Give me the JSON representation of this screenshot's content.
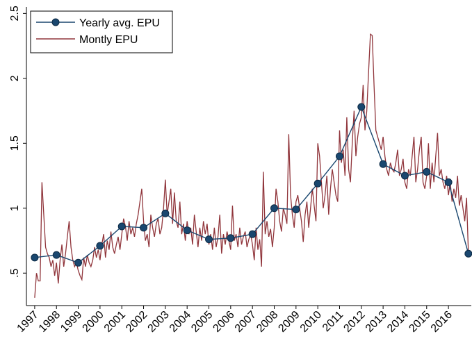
{
  "chart_data": {
    "type": "line",
    "xlim": [
      1996.62,
      2017.05
    ],
    "xticks": [
      1997,
      1998,
      1999,
      2000,
      2001,
      2002,
      2003,
      2004,
      2005,
      2006,
      2007,
      2008,
      2009,
      2010,
      2011,
      2012,
      2013,
      2014,
      2015,
      2016
    ],
    "ylim": [
      0.25,
      2.55
    ],
    "yticks": [
      {
        "value": 0.5,
        "label": ".5"
      },
      1,
      1.5,
      2,
      2.5
    ],
    "legend": "top-left",
    "series": [
      {
        "name": "Yearly avg. EPU",
        "color": "#1a476f",
        "marker": true,
        "x": [
          1997,
          1998,
          1999,
          2000,
          2001,
          2002,
          2003,
          2004,
          2005,
          2006,
          2007,
          2008,
          2009,
          2010,
          2011,
          2012,
          2013,
          2014,
          2015,
          2016,
          2016.917
        ],
        "values": [
          0.62,
          0.64,
          0.58,
          0.71,
          0.86,
          0.85,
          0.96,
          0.83,
          0.76,
          0.77,
          0.8,
          1.0,
          0.99,
          1.19,
          1.4,
          1.78,
          1.34,
          1.25,
          1.28,
          1.2,
          0.65
        ]
      },
      {
        "name": "Montly EPU",
        "color": "#90353b",
        "marker": false,
        "x": [
          1997,
          1997.083,
          1997.167,
          1997.25,
          1997.333,
          1997.417,
          1997.5,
          1997.583,
          1997.667,
          1997.75,
          1997.833,
          1997.917,
          1998,
          1998.083,
          1998.167,
          1998.25,
          1998.333,
          1998.417,
          1998.5,
          1998.583,
          1998.667,
          1998.75,
          1998.833,
          1998.917,
          1999,
          1999.083,
          1999.167,
          1999.25,
          1999.333,
          1999.417,
          1999.5,
          1999.583,
          1999.667,
          1999.75,
          1999.833,
          1999.917,
          2000,
          2000.083,
          2000.167,
          2000.25,
          2000.333,
          2000.417,
          2000.5,
          2000.583,
          2000.667,
          2000.75,
          2000.833,
          2000.917,
          2001,
          2001.083,
          2001.167,
          2001.25,
          2001.333,
          2001.417,
          2001.5,
          2001.583,
          2001.667,
          2001.75,
          2001.833,
          2001.917,
          2002,
          2002.083,
          2002.167,
          2002.25,
          2002.333,
          2002.417,
          2002.5,
          2002.583,
          2002.667,
          2002.75,
          2002.833,
          2002.917,
          2003,
          2003.083,
          2003.167,
          2003.25,
          2003.333,
          2003.417,
          2003.5,
          2003.583,
          2003.667,
          2003.75,
          2003.833,
          2003.917,
          2004,
          2004.083,
          2004.167,
          2004.25,
          2004.333,
          2004.417,
          2004.5,
          2004.583,
          2004.667,
          2004.75,
          2004.833,
          2004.917,
          2005,
          2005.083,
          2005.167,
          2005.25,
          2005.333,
          2005.417,
          2005.5,
          2005.583,
          2005.667,
          2005.75,
          2005.833,
          2005.917,
          2006,
          2006.083,
          2006.167,
          2006.25,
          2006.333,
          2006.417,
          2006.5,
          2006.583,
          2006.667,
          2006.75,
          2006.833,
          2006.917,
          2007,
          2007.083,
          2007.167,
          2007.25,
          2007.333,
          2007.417,
          2007.5,
          2007.583,
          2007.667,
          2007.75,
          2007.833,
          2007.917,
          2008,
          2008.083,
          2008.167,
          2008.25,
          2008.333,
          2008.417,
          2008.5,
          2008.583,
          2008.667,
          2008.75,
          2008.833,
          2008.917,
          2009,
          2009.083,
          2009.167,
          2009.25,
          2009.333,
          2009.417,
          2009.5,
          2009.583,
          2009.667,
          2009.75,
          2009.833,
          2009.917,
          2010,
          2010.083,
          2010.167,
          2010.25,
          2010.333,
          2010.417,
          2010.5,
          2010.583,
          2010.667,
          2010.75,
          2010.833,
          2010.917,
          2011,
          2011.083,
          2011.167,
          2011.25,
          2011.333,
          2011.417,
          2011.5,
          2011.583,
          2011.667,
          2011.75,
          2011.833,
          2011.917,
          2012,
          2012.083,
          2012.167,
          2012.25,
          2012.333,
          2012.417,
          2012.5,
          2012.583,
          2012.667,
          2012.75,
          2012.833,
          2012.917,
          2013,
          2013.083,
          2013.167,
          2013.25,
          2013.333,
          2013.417,
          2013.5,
          2013.583,
          2013.667,
          2013.75,
          2013.833,
          2013.917,
          2014,
          2014.083,
          2014.167,
          2014.25,
          2014.333,
          2014.417,
          2014.5,
          2014.583,
          2014.667,
          2014.75,
          2014.833,
          2014.917,
          2015,
          2015.083,
          2015.167,
          2015.25,
          2015.333,
          2015.417,
          2015.5,
          2015.583,
          2015.667,
          2015.75,
          2015.833,
          2015.917,
          2016,
          2016.083,
          2016.167,
          2016.25,
          2016.333,
          2016.417,
          2016.5,
          2016.583,
          2016.667,
          2016.75,
          2016.833,
          2016.917
        ],
        "values": [
          0.31,
          0.5,
          0.44,
          0.44,
          1.2,
          0.95,
          0.7,
          0.65,
          0.62,
          0.55,
          0.6,
          0.48,
          0.58,
          0.42,
          0.6,
          0.72,
          0.55,
          0.65,
          0.78,
          0.9,
          0.7,
          0.6,
          0.55,
          0.58,
          0.52,
          0.48,
          0.45,
          0.62,
          0.55,
          0.64,
          0.58,
          0.55,
          0.6,
          0.7,
          0.62,
          0.68,
          0.6,
          0.72,
          0.8,
          0.62,
          0.75,
          0.68,
          0.82,
          0.7,
          0.65,
          0.72,
          0.78,
          0.68,
          0.8,
          0.92,
          0.86,
          0.75,
          0.9,
          0.8,
          0.85,
          0.78,
          0.88,
          0.95,
          1.05,
          1.15,
          0.9,
          0.75,
          0.8,
          0.7,
          0.95,
          0.85,
          0.78,
          0.88,
          0.92,
          0.8,
          0.85,
          1.0,
          1.22,
          0.95,
          1.05,
          1.15,
          0.88,
          1.12,
          0.9,
          0.85,
          1.05,
          0.8,
          0.88,
          0.75,
          0.9,
          0.8,
          0.85,
          0.72,
          0.95,
          0.82,
          0.7,
          0.85,
          0.75,
          0.9,
          0.8,
          0.88,
          0.72,
          0.8,
          0.68,
          0.85,
          0.7,
          0.78,
          0.95,
          0.65,
          0.8,
          0.72,
          0.82,
          0.75,
          0.68,
          1.02,
          0.75,
          0.8,
          0.7,
          0.85,
          0.72,
          0.78,
          0.82,
          0.7,
          0.76,
          0.8,
          0.72,
          0.6,
          0.85,
          0.68,
          0.76,
          0.55,
          1.28,
          0.8,
          0.9,
          0.78,
          0.84,
          0.7,
          0.85,
          1.15,
          1.05,
          0.9,
          0.82,
          1.0,
          0.95,
          0.88,
          1.57,
          1.1,
          0.95,
          0.85,
          1.05,
          1.1,
          1.0,
          0.9,
          0.74,
          0.95,
          1.05,
          0.85,
          1.0,
          1.15,
          1.02,
          0.9,
          1.5,
          1.4,
          1.2,
          1.0,
          1.1,
          1.25,
          0.95,
          1.15,
          1.3,
          1.2,
          1.1,
          1.05,
          1.6,
          1.35,
          1.45,
          1.25,
          1.7,
          1.3,
          1.2,
          1.5,
          1.75,
          1.4,
          1.55,
          1.65,
          1.7,
          1.95,
          1.6,
          1.75,
          2.05,
          2.34,
          2.33,
          1.95,
          1.6,
          1.55,
          1.5,
          1.45,
          1.55,
          1.4,
          1.3,
          1.25,
          1.35,
          1.3,
          1.28,
          1.35,
          1.45,
          1.25,
          1.3,
          1.38,
          1.2,
          1.15,
          1.3,
          1.25,
          1.4,
          1.55,
          1.2,
          1.3,
          1.45,
          1.55,
          1.2,
          1.15,
          1.25,
          1.5,
          1.15,
          1.35,
          1.2,
          1.4,
          1.58,
          1.25,
          1.3,
          1.2,
          1.15,
          1.25,
          1.1,
          1.2,
          1.05,
          1.15,
          1.08,
          1.25,
          1.02,
          1.1,
          1.0,
          0.9,
          1.08,
          0.65
        ]
      }
    ]
  }
}
